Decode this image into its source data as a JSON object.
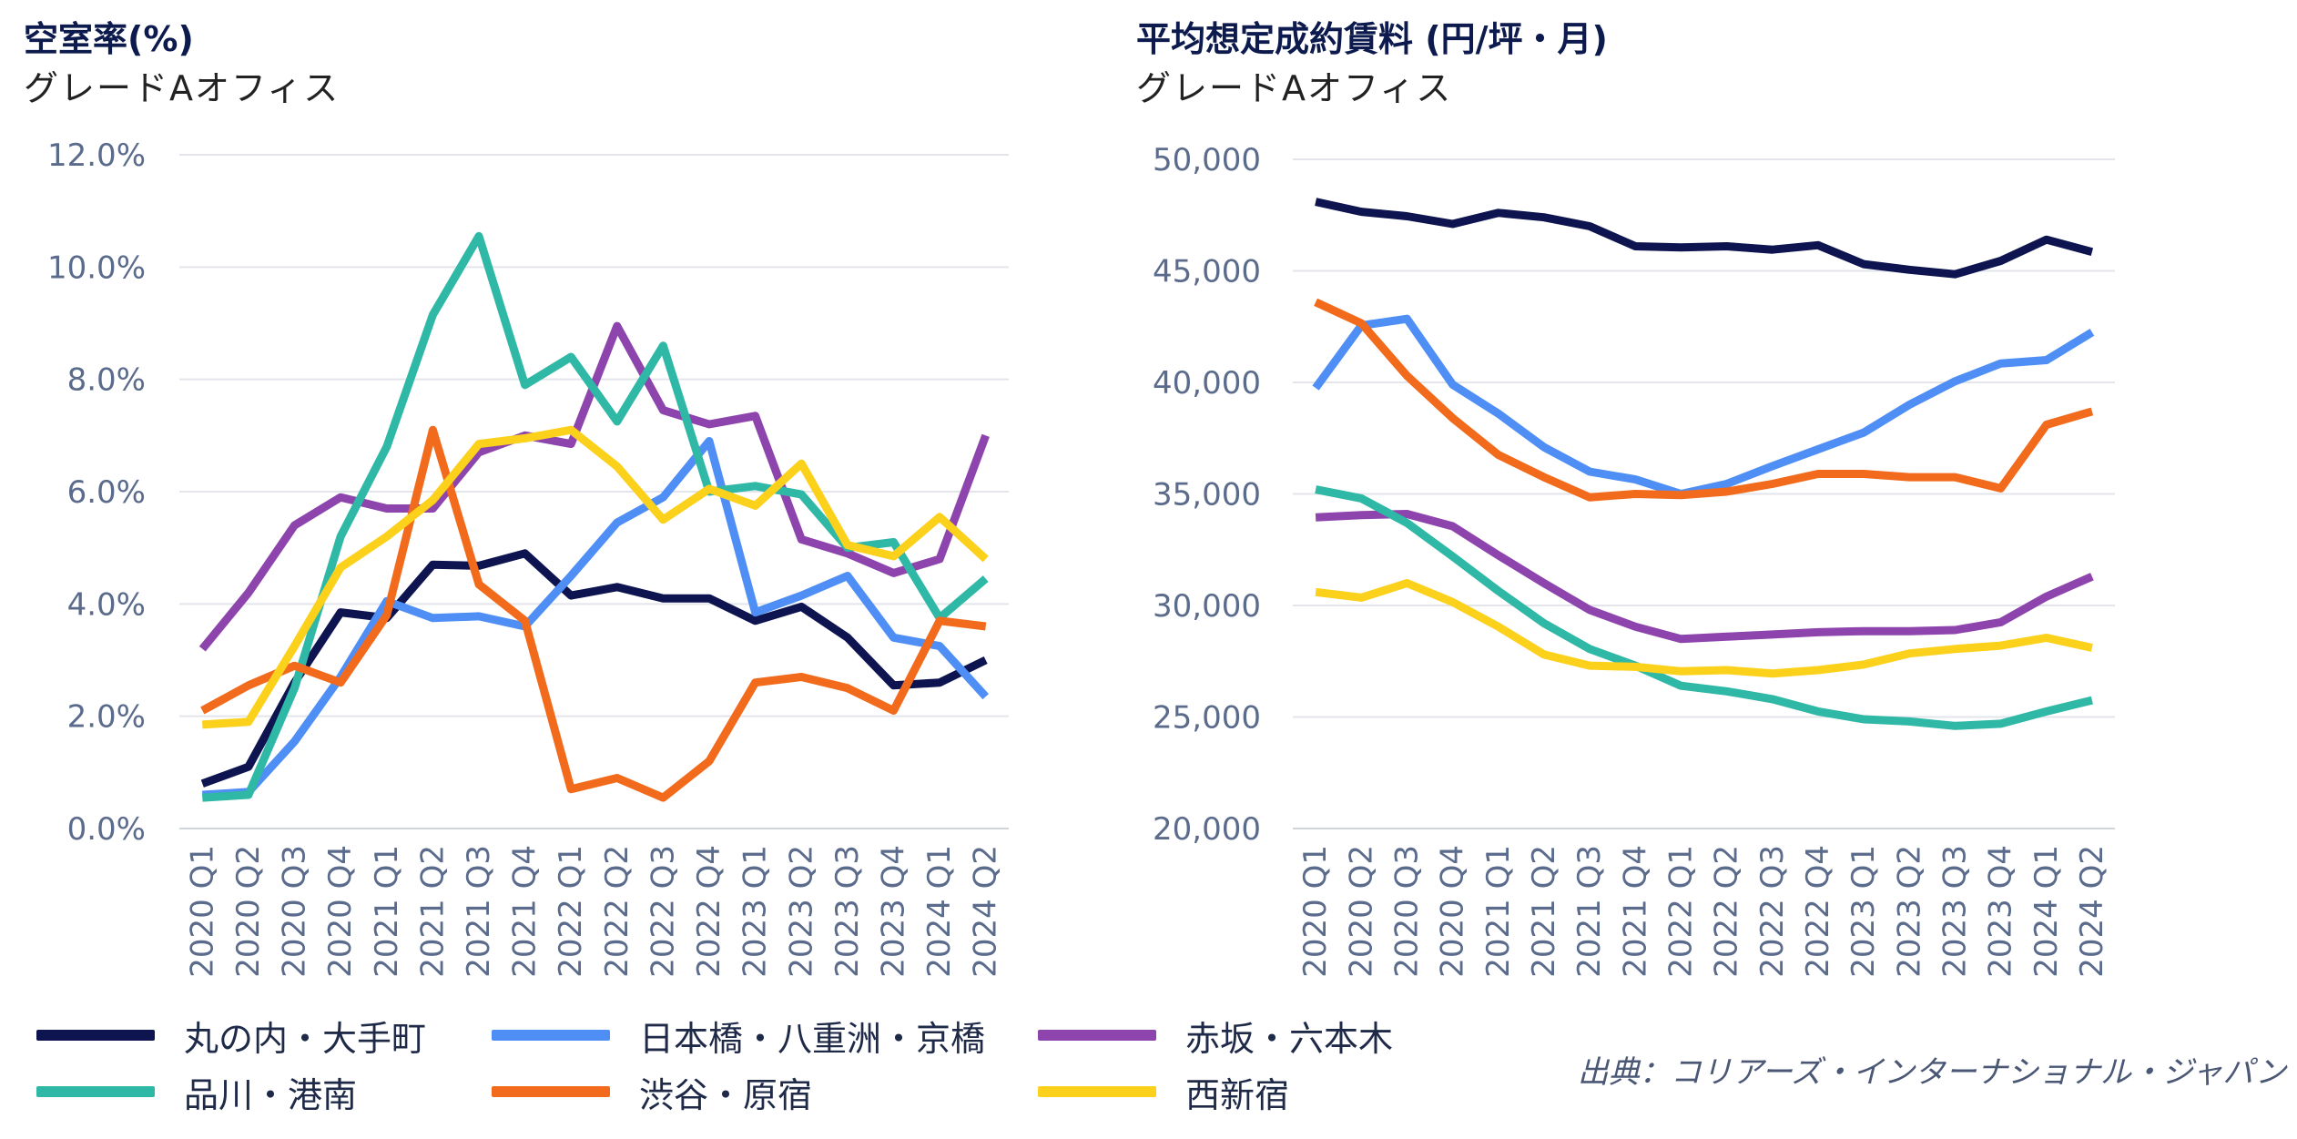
{
  "chart_data": [
    {
      "type": "line",
      "title": "空室率(%)",
      "subtitle": "グレードAオフィス",
      "xlabel": "",
      "ylabel": "",
      "ylim": [
        0,
        12
      ],
      "yticks": [
        "0.0%",
        "2.0%",
        "4.0%",
        "6.0%",
        "8.0%",
        "10.0%",
        "12.0%"
      ],
      "categories": [
        "2020 Q1",
        "2020 Q2",
        "2020 Q3",
        "2020 Q4",
        "2021 Q1",
        "2021 Q2",
        "2021 Q3",
        "2021 Q4",
        "2022 Q1",
        "2022 Q2",
        "2022 Q3",
        "2022 Q4",
        "2023 Q1",
        "2023 Q2",
        "2023 Q3",
        "2023 Q4",
        "2024 Q1",
        "2024 Q2"
      ],
      "grid": true,
      "series": [
        {
          "name": "丸の内・大手町",
          "color": "#0d1450",
          "values": [
            0.8,
            1.1,
            2.6,
            3.85,
            3.75,
            4.7,
            4.68,
            4.9,
            4.15,
            4.3,
            4.1,
            4.1,
            3.7,
            3.95,
            3.4,
            2.55,
            2.6,
            3.0
          ]
        },
        {
          "name": "日本橋・八重洲・京橋",
          "color": "#4f8ff5",
          "values": [
            0.6,
            0.65,
            1.55,
            2.7,
            4.05,
            3.75,
            3.78,
            3.6,
            4.5,
            5.45,
            5.9,
            6.9,
            3.85,
            4.15,
            4.5,
            3.4,
            3.25,
            2.35
          ]
        },
        {
          "name": "赤坂・六本木",
          "color": "#8e44ad",
          "values": [
            3.2,
            4.2,
            5.4,
            5.9,
            5.7,
            5.7,
            6.7,
            7.0,
            6.85,
            8.95,
            7.45,
            7.2,
            7.35,
            5.15,
            4.9,
            4.55,
            4.8,
            7.0
          ]
        },
        {
          "name": "品川・港南",
          "color": "#2fb8a6",
          "values": [
            0.55,
            0.6,
            2.5,
            5.2,
            6.8,
            9.15,
            10.55,
            7.9,
            8.4,
            7.25,
            8.6,
            6.0,
            6.1,
            5.95,
            5.0,
            5.1,
            3.75,
            4.45
          ]
        },
        {
          "name": "渋谷・原宿",
          "color": "#f26a1b",
          "values": [
            2.1,
            2.55,
            2.9,
            2.6,
            3.8,
            7.1,
            4.35,
            3.7,
            0.7,
            0.9,
            0.55,
            1.2,
            2.6,
            2.7,
            2.5,
            2.1,
            3.7,
            3.6
          ]
        },
        {
          "name": "西新宿",
          "color": "#fbd11b",
          "values": [
            1.85,
            1.9,
            3.25,
            4.65,
            5.2,
            5.85,
            6.85,
            6.95,
            7.1,
            6.45,
            5.5,
            6.05,
            5.75,
            6.5,
            5.05,
            4.85,
            5.55,
            4.8
          ]
        }
      ]
    },
    {
      "type": "line",
      "title": "平均想定成約賃料 (円/坪・月)",
      "subtitle": "グレードAオフィス",
      "xlabel": "",
      "ylabel": "",
      "ylim": [
        20000,
        50000
      ],
      "yticks": [
        "20,000",
        "25,000",
        "30,000",
        "35,000",
        "40,000",
        "45,000",
        "50,000"
      ],
      "categories": [
        "2020 Q1",
        "2020 Q2",
        "2020 Q3",
        "2020 Q4",
        "2021 Q1",
        "2021 Q2",
        "2021 Q3",
        "2021 Q4",
        "2022 Q1",
        "2022 Q2",
        "2022 Q3",
        "2022 Q4",
        "2023 Q1",
        "2023 Q2",
        "2023 Q3",
        "2023 Q4",
        "2024 Q1",
        "2024 Q2"
      ],
      "grid": true,
      "series": [
        {
          "name": "丸の内・大手町",
          "color": "#0d1450",
          "values": [
            48100,
            47650,
            47450,
            47100,
            47600,
            47400,
            47000,
            46100,
            46050,
            46100,
            45950,
            46150,
            45300,
            45050,
            44850,
            45450,
            46400,
            45850
          ]
        },
        {
          "name": "日本橋・八重洲・京橋",
          "color": "#4f8ff5",
          "values": [
            39750,
            42550,
            42850,
            39900,
            38600,
            37100,
            36000,
            35650,
            35000,
            35450,
            36250,
            37000,
            37750,
            39000,
            40050,
            40850,
            41000,
            42250
          ]
        },
        {
          "name": "赤坂・六本木",
          "color": "#8e44ad",
          "values": [
            33950,
            34050,
            34100,
            33550,
            32250,
            31000,
            29800,
            29050,
            28500,
            28600,
            28700,
            28800,
            28850,
            28850,
            28900,
            29250,
            30400,
            31300
          ]
        },
        {
          "name": "品川・港南",
          "color": "#2fb8a6",
          "values": [
            35200,
            34800,
            33700,
            32200,
            30650,
            29200,
            28050,
            27300,
            26400,
            26150,
            25800,
            25250,
            24900,
            24800,
            24600,
            24700,
            25250,
            25750
          ]
        },
        {
          "name": "渋谷・原宿",
          "color": "#f26a1b",
          "values": [
            43600,
            42650,
            40300,
            38400,
            36750,
            35750,
            34850,
            35000,
            34950,
            35100,
            35450,
            35900,
            35900,
            35750,
            35750,
            35250,
            38100,
            38700
          ]
        },
        {
          "name": "西新宿",
          "color": "#fbd11b",
          "values": [
            30600,
            30350,
            31000,
            30150,
            29050,
            27800,
            27300,
            27250,
            27050,
            27100,
            26950,
            27100,
            27350,
            27850,
            28050,
            28200,
            28550,
            28100
          ]
        }
      ]
    }
  ],
  "legend": [
    {
      "label": "丸の内・大手町",
      "color": "#0d1450"
    },
    {
      "label": "日本橋・八重洲・京橋",
      "color": "#4f8ff5"
    },
    {
      "label": "赤坂・六本木",
      "color": "#8e44ad"
    },
    {
      "label": "品川・港南",
      "color": "#2fb8a6"
    },
    {
      "label": "渋谷・原宿",
      "color": "#f26a1b"
    },
    {
      "label": "西新宿",
      "color": "#fbd11b"
    }
  ],
  "source": "出典：コリアーズ・インターナショナル・ジャパン"
}
